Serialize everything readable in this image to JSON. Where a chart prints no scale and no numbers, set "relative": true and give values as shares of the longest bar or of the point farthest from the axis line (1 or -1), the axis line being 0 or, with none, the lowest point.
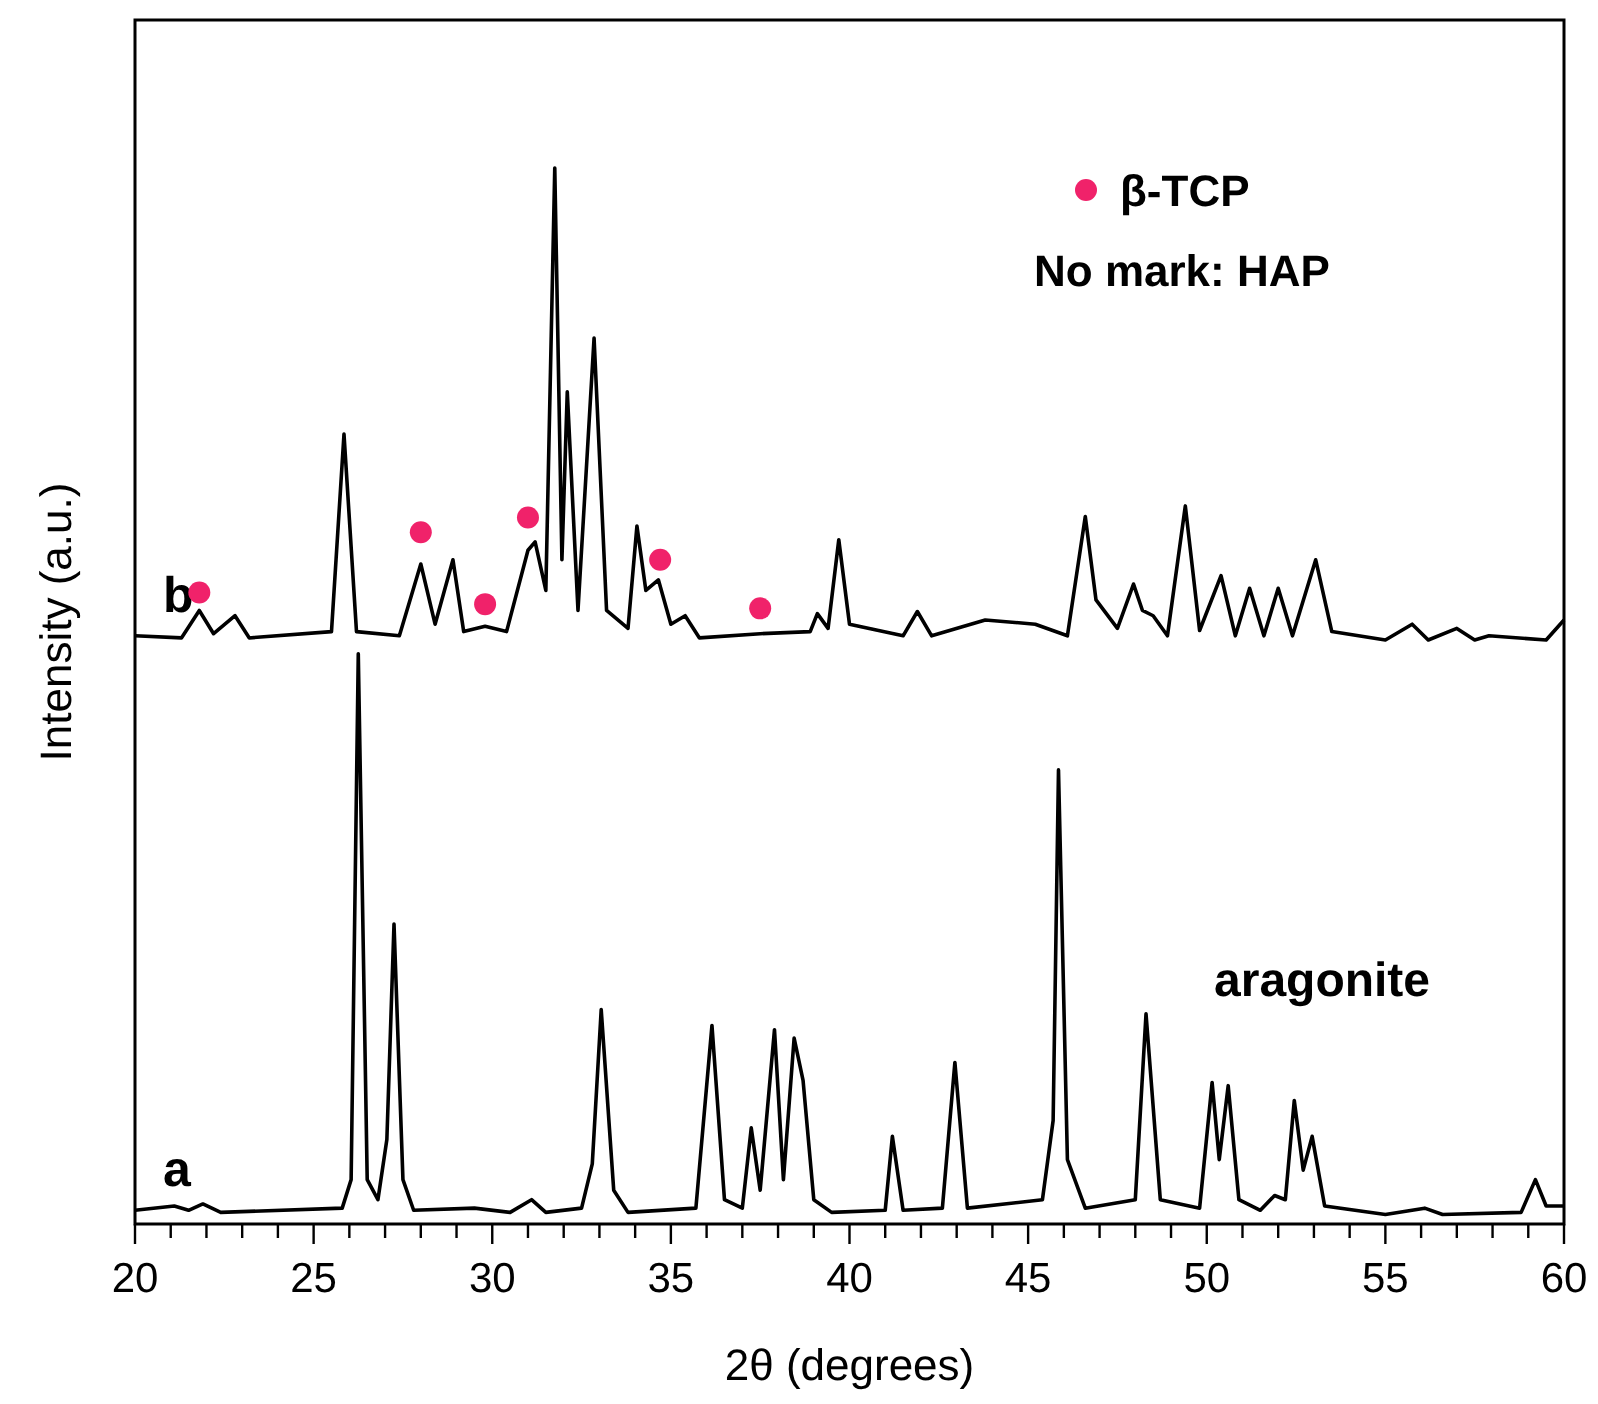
{
  "chart_data": {
    "type": "line",
    "relative": true,
    "xlabel": "2θ (degrees)",
    "ylabel": "Intensity (a.u.)",
    "xlim": [
      20,
      60
    ],
    "xticks": [
      20,
      {
        "value": 21,
        "label": null
      },
      {
        "value": 22,
        "label": null
      },
      {
        "value": 23,
        "label": null
      },
      {
        "value": 24,
        "label": null
      },
      25,
      {
        "value": 26,
        "label": null
      },
      {
        "value": 27,
        "label": null
      },
      {
        "value": 28,
        "label": null
      },
      {
        "value": 29,
        "label": null
      },
      30,
      {
        "value": 31,
        "label": null
      },
      {
        "value": 32,
        "label": null
      },
      {
        "value": 33,
        "label": null
      },
      {
        "value": 34,
        "label": null
      },
      35,
      {
        "value": 36,
        "label": null
      },
      {
        "value": 37,
        "label": null
      },
      {
        "value": 38,
        "label": null
      },
      {
        "value": 39,
        "label": null
      },
      40,
      {
        "value": 41,
        "label": null
      },
      {
        "value": 42,
        "label": null
      },
      {
        "value": 43,
        "label": null
      },
      {
        "value": 44,
        "label": null
      },
      45,
      {
        "value": 46,
        "label": null
      },
      {
        "value": 47,
        "label": null
      },
      {
        "value": 48,
        "label": null
      },
      {
        "value": 49,
        "label": null
      },
      50,
      {
        "value": 51,
        "label": null
      },
      {
        "value": 52,
        "label": null
      },
      {
        "value": 53,
        "label": null
      },
      {
        "value": 54,
        "label": null
      },
      55,
      {
        "value": 56,
        "label": null
      },
      {
        "value": 57,
        "label": null
      },
      {
        "value": 58,
        "label": null
      },
      {
        "value": 59,
        "label": null
      },
      60
    ],
    "tick_labels": "x",
    "grid": false,
    "legend": "top right",
    "marker": "none",
    "line_style": "solid",
    "series": [
      {
        "name": "a",
        "color": "#000000",
        "x": [
          20,
          21.1,
          21.5,
          21.9,
          22.4,
          25.8,
          26.05,
          26.25,
          26.5,
          26.8,
          27.05,
          27.25,
          27.5,
          27.8,
          29.5,
          30.5,
          31.1,
          31.5,
          32.5,
          32.8,
          33.05,
          33.4,
          33.8,
          35.7,
          36.15,
          36.5,
          37.0,
          37.25,
          37.5,
          37.9,
          38.15,
          38.45,
          38.7,
          39.0,
          39.5,
          41.0,
          41.2,
          41.5,
          42.6,
          42.95,
          43.3,
          45.4,
          45.7,
          45.85,
          46.1,
          46.6,
          48.0,
          48.3,
          48.7,
          49.8,
          50.15,
          50.35,
          50.6,
          50.9,
          51.5,
          51.9,
          52.2,
          52.45,
          52.7,
          52.95,
          53.3,
          55.0,
          56.1,
          56.6,
          58.8,
          59.2,
          59.5,
          60
        ],
        "values": [
          0.013,
          0.017,
          0.013,
          0.019,
          0.011,
          0.015,
          0.042,
          0.54,
          0.042,
          0.023,
          0.08,
          0.284,
          0.042,
          0.013,
          0.015,
          0.011,
          0.023,
          0.011,
          0.015,
          0.057,
          0.203,
          0.032,
          0.011,
          0.015,
          0.188,
          0.023,
          0.015,
          0.091,
          0.032,
          0.184,
          0.042,
          0.176,
          0.136,
          0.023,
          0.011,
          0.013,
          0.083,
          0.013,
          0.015,
          0.153,
          0.015,
          0.023,
          0.098,
          0.43,
          0.061,
          0.015,
          0.023,
          0.199,
          0.023,
          0.015,
          0.134,
          0.061,
          0.131,
          0.023,
          0.013,
          0.027,
          0.023,
          0.117,
          0.051,
          0.083,
          0.017,
          0.009,
          0.015,
          0.009,
          0.011,
          0.042,
          0.017,
          0.017
        ]
      },
      {
        "name": "b",
        "color": "#000000",
        "x": [
          20,
          21.3,
          21.8,
          22.2,
          22.8,
          23.2,
          25.5,
          25.85,
          26.2,
          27.4,
          28.0,
          28.4,
          28.9,
          29.2,
          29.8,
          30.4,
          31.0,
          31.2,
          31.5,
          31.75,
          31.95,
          32.1,
          32.4,
          32.85,
          33.2,
          33.8,
          34.05,
          34.3,
          34.65,
          35.0,
          35.4,
          35.8,
          37.5,
          38.9,
          39.1,
          39.4,
          39.7,
          40.0,
          41.5,
          41.9,
          42.3,
          43.8,
          45.2,
          46.1,
          46.6,
          46.9,
          47.5,
          47.95,
          48.2,
          48.5,
          48.9,
          49.4,
          49.8,
          50.4,
          50.8,
          51.2,
          51.6,
          52.0,
          52.4,
          53.05,
          53.5,
          55.0,
          55.75,
          56.2,
          57.0,
          57.5,
          57.9,
          59.5,
          60
        ],
        "values": [
          0.557,
          0.555,
          0.581,
          0.559,
          0.576,
          0.555,
          0.561,
          0.748,
          0.561,
          0.557,
          0.625,
          0.568,
          0.629,
          0.561,
          0.566,
          0.561,
          0.638,
          0.646,
          0.6,
          1.0,
          0.629,
          0.788,
          0.581,
          0.839,
          0.581,
          0.564,
          0.661,
          0.6,
          0.61,
          0.568,
          0.576,
          0.555,
          0.559,
          0.561,
          0.578,
          0.564,
          0.648,
          0.568,
          0.557,
          0.58,
          0.557,
          0.572,
          0.568,
          0.557,
          0.67,
          0.591,
          0.564,
          0.606,
          0.581,
          0.576,
          0.557,
          0.68,
          0.562,
          0.614,
          0.557,
          0.602,
          0.557,
          0.602,
          0.557,
          0.629,
          0.561,
          0.553,
          0.568,
          0.553,
          0.564,
          0.553,
          0.557,
          0.553,
          0.572
        ]
      },
      {
        "name": "β-TCP",
        "type": "scatter",
        "marker": "circle",
        "color": "#f0226a",
        "x": [
          21.8,
          28.0,
          29.8,
          31.0,
          34.7,
          37.5
        ],
        "values": [
          0.598,
          0.655,
          0.587,
          0.669,
          0.629,
          0.583
        ]
      }
    ],
    "annotations": [
      "No mark: HAP",
      "aragonite"
    ]
  }
}
